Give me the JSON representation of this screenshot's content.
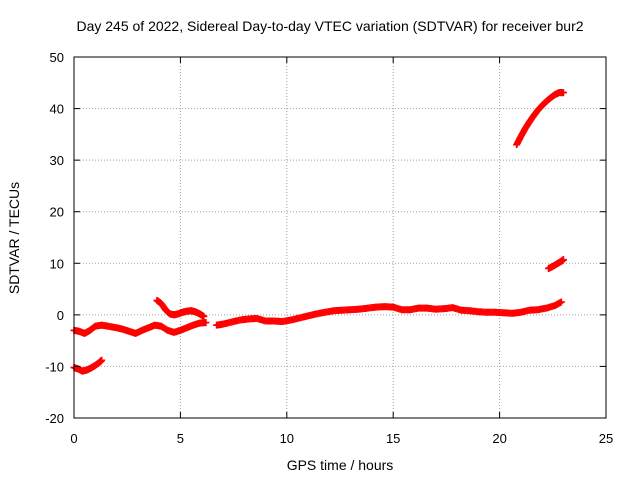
{
  "chart_data": {
    "type": "scatter",
    "title": "Day 245 of 2022, Sidereal Day-to-day VTEC variation (SDTVAR) for receiver bur2",
    "xlabel": "GPS time / hours",
    "ylabel": "SDTVAR / TECUs",
    "xlim": [
      0,
      25
    ],
    "ylim": [
      -20,
      50
    ],
    "xticks": [
      0,
      5,
      10,
      15,
      20,
      25
    ],
    "yticks": [
      -20,
      -10,
      0,
      10,
      20,
      30,
      40,
      50
    ],
    "grid": true,
    "marker": "+",
    "colors": {
      "series": "#ff0000",
      "axes": "#000000",
      "grid": "#a0a0a0",
      "background": "#ffffff"
    },
    "series": [
      {
        "name": "main-band",
        "points": [
          [
            0.0,
            -3.0
          ],
          [
            0.25,
            -3.2
          ],
          [
            0.5,
            -3.6
          ],
          [
            0.75,
            -3.0
          ],
          [
            1.0,
            -2.2
          ],
          [
            1.3,
            -2.0
          ],
          [
            1.6,
            -2.2
          ],
          [
            2.0,
            -2.5
          ],
          [
            2.3,
            -2.8
          ],
          [
            2.6,
            -3.2
          ],
          [
            2.9,
            -3.6
          ],
          [
            3.2,
            -3.0
          ],
          [
            3.5,
            -2.5
          ],
          [
            3.8,
            -2.0
          ],
          [
            4.1,
            -2.2
          ],
          [
            4.4,
            -3.0
          ],
          [
            4.7,
            -3.4
          ],
          [
            5.0,
            -3.0
          ],
          [
            5.3,
            -2.5
          ],
          [
            5.6,
            -2.0
          ],
          [
            5.9,
            -1.6
          ],
          [
            6.2,
            -1.5
          ]
        ]
      },
      {
        "name": "hump-4h",
        "points": [
          [
            3.9,
            2.8
          ],
          [
            4.1,
            2.2
          ],
          [
            4.3,
            1.0
          ],
          [
            4.5,
            0.2
          ],
          [
            4.7,
            0.0
          ],
          [
            4.9,
            0.2
          ],
          [
            5.1,
            0.5
          ],
          [
            5.3,
            0.7
          ],
          [
            5.5,
            0.8
          ],
          [
            5.7,
            0.6
          ],
          [
            5.9,
            0.2
          ],
          [
            6.1,
            -0.3
          ]
        ]
      },
      {
        "name": "mid-band",
        "points": [
          [
            6.7,
            -2.0
          ],
          [
            7.0,
            -1.8
          ],
          [
            7.4,
            -1.4
          ],
          [
            7.8,
            -1.0
          ],
          [
            8.2,
            -0.8
          ],
          [
            8.6,
            -0.7
          ],
          [
            9.0,
            -1.2
          ],
          [
            9.4,
            -1.2
          ],
          [
            9.8,
            -1.3
          ],
          [
            10.2,
            -1.0
          ],
          [
            10.6,
            -0.6
          ],
          [
            11.0,
            -0.2
          ],
          [
            11.4,
            0.2
          ],
          [
            11.8,
            0.5
          ],
          [
            12.2,
            0.8
          ],
          [
            12.6,
            0.9
          ],
          [
            13.0,
            1.0
          ],
          [
            13.4,
            1.1
          ],
          [
            13.8,
            1.3
          ],
          [
            14.2,
            1.5
          ],
          [
            14.6,
            1.6
          ],
          [
            15.0,
            1.5
          ],
          [
            15.4,
            1.0
          ],
          [
            15.8,
            1.0
          ],
          [
            16.2,
            1.3
          ],
          [
            16.6,
            1.3
          ],
          [
            17.0,
            1.1
          ],
          [
            17.4,
            1.2
          ],
          [
            17.8,
            1.4
          ],
          [
            18.2,
            0.9
          ],
          [
            18.6,
            0.8
          ],
          [
            19.0,
            0.6
          ],
          [
            19.4,
            0.5
          ],
          [
            19.8,
            0.5
          ],
          [
            20.2,
            0.4
          ],
          [
            20.6,
            0.3
          ],
          [
            21.0,
            0.5
          ],
          [
            21.4,
            0.9
          ],
          [
            21.8,
            1.0
          ],
          [
            22.2,
            1.3
          ],
          [
            22.6,
            1.8
          ],
          [
            22.9,
            2.5
          ]
        ]
      },
      {
        "name": "early-dip",
        "points": [
          [
            0.0,
            -10.2
          ],
          [
            0.2,
            -10.5
          ],
          [
            0.4,
            -10.9
          ],
          [
            0.6,
            -10.7
          ],
          [
            0.8,
            -10.3
          ],
          [
            1.0,
            -9.8
          ],
          [
            1.2,
            -9.2
          ],
          [
            1.3,
            -8.8
          ]
        ]
      },
      {
        "name": "high-arc",
        "points": [
          [
            20.8,
            33.0
          ],
          [
            21.0,
            34.6
          ],
          [
            21.2,
            36.1
          ],
          [
            21.4,
            37.4
          ],
          [
            21.6,
            38.6
          ],
          [
            21.8,
            39.7
          ],
          [
            22.0,
            40.6
          ],
          [
            22.2,
            41.4
          ],
          [
            22.4,
            42.1
          ],
          [
            22.6,
            42.7
          ],
          [
            22.8,
            43.1
          ],
          [
            23.0,
            43.1
          ]
        ]
      },
      {
        "name": "late-rise",
        "points": [
          [
            22.3,
            9.0
          ],
          [
            22.5,
            9.4
          ],
          [
            22.7,
            9.9
          ],
          [
            22.9,
            10.4
          ],
          [
            23.0,
            10.7
          ]
        ]
      }
    ]
  }
}
